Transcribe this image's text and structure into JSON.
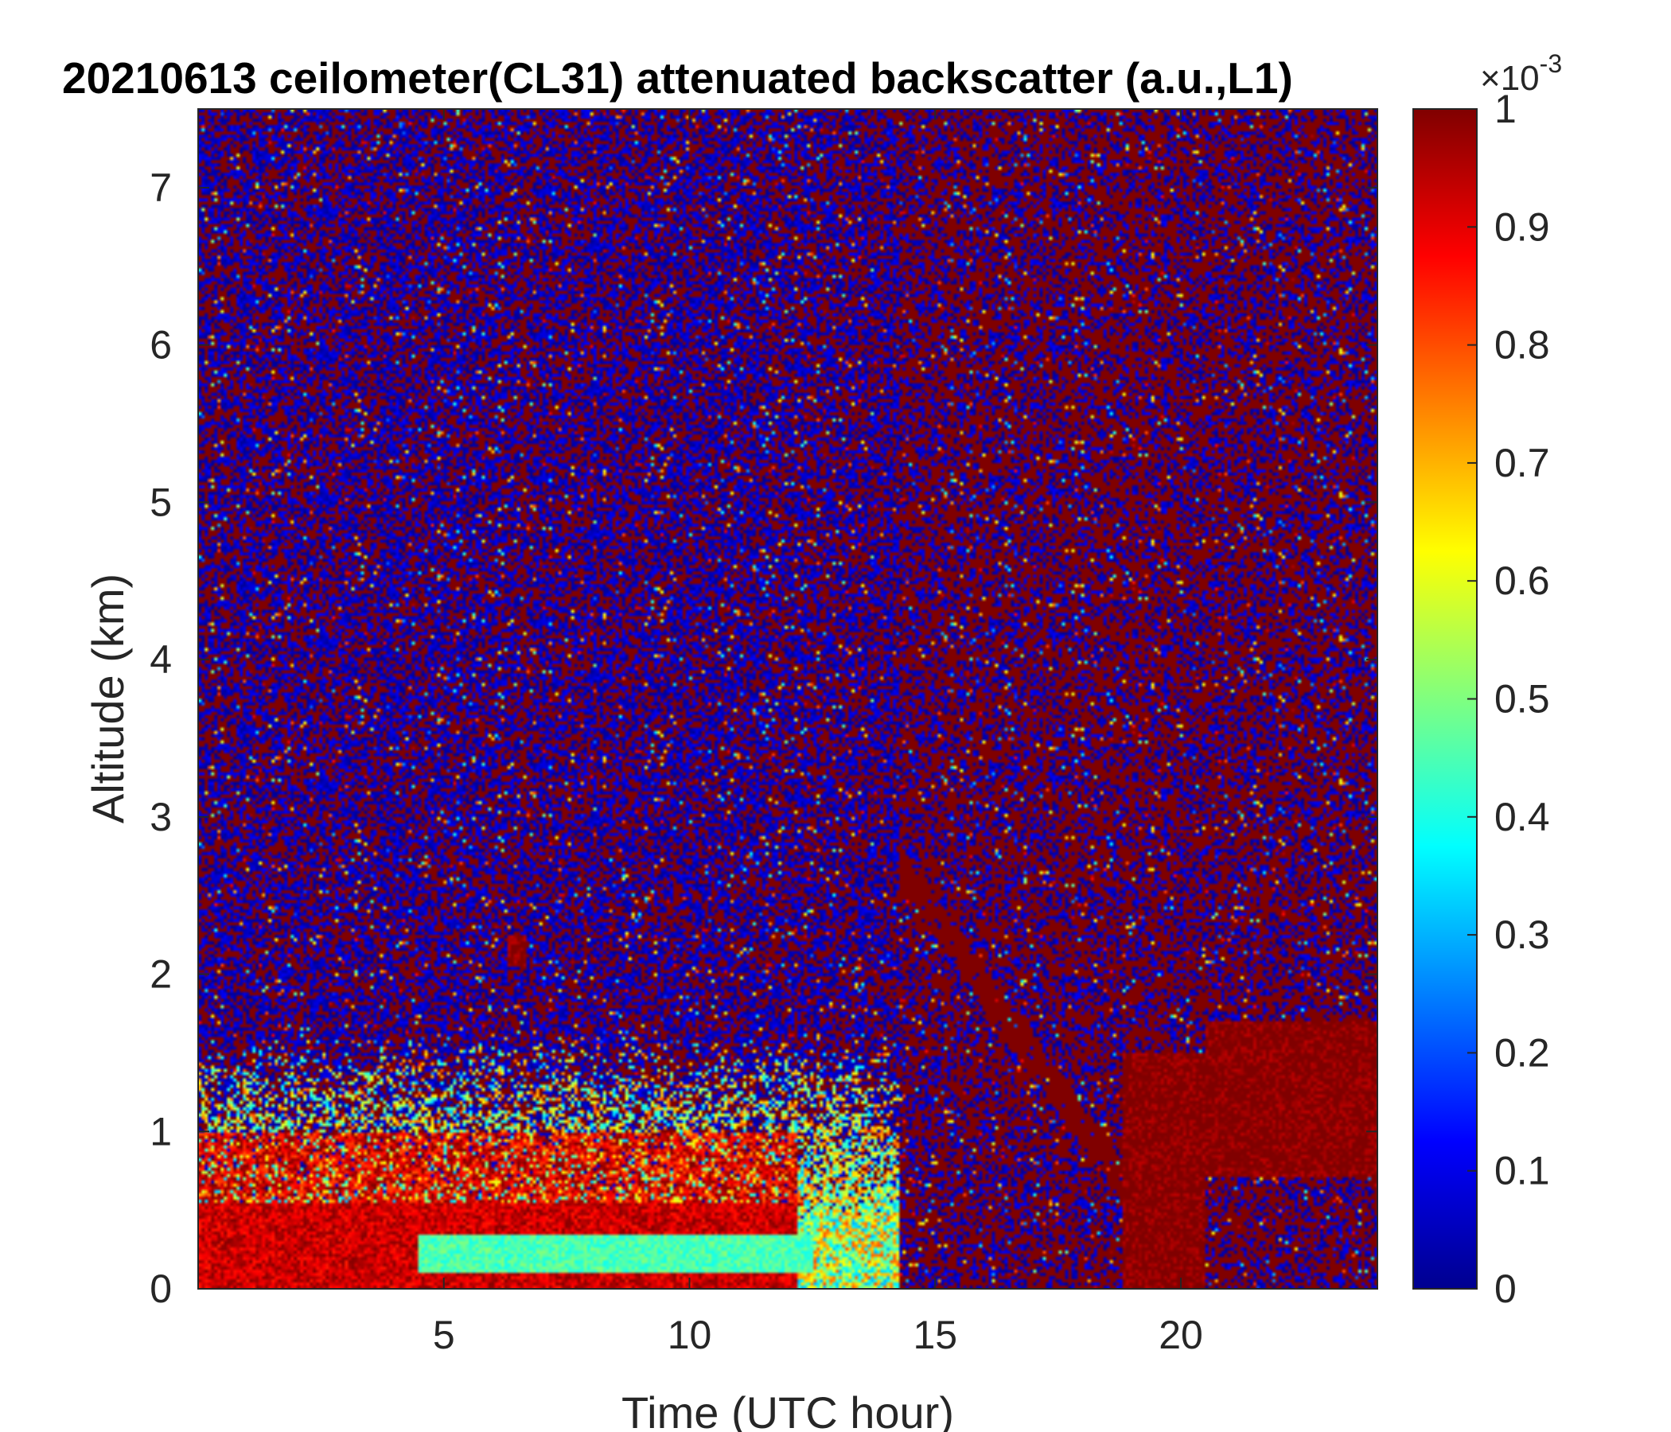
{
  "chart_data": {
    "type": "heatmap",
    "title": "20210613 ceilometer(CL31) attenuated backscatter (a.u.,L1)",
    "xlabel": "Time (UTC hour)",
    "ylabel": "Altitude (km)",
    "xlim": [
      0,
      24
    ],
    "ylim": [
      0,
      7.5
    ],
    "xticks": [
      5,
      10,
      15,
      20
    ],
    "yticks": [
      0,
      1,
      2,
      3,
      4,
      5,
      6,
      7
    ],
    "colorbar": {
      "colormap": "jet",
      "clim": [
        0,
        1
      ],
      "ticks": [
        0,
        0.1,
        0.2,
        0.3,
        0.4,
        0.5,
        0.6,
        0.7,
        0.8,
        0.9,
        1
      ],
      "exponent_base": "10",
      "exponent": "-3",
      "exponent_prefix": "×"
    },
    "features": [
      {
        "name": "boundary-layer backscatter (0–12 h)",
        "x": [
          0,
          12.2
        ],
        "y": [
          0,
          1.0
        ],
        "value": 0.95
      },
      {
        "name": "low-level aerosol band",
        "x": [
          4.5,
          12.5
        ],
        "y": [
          0.1,
          0.35
        ],
        "value": 0.45
      },
      {
        "name": "isolated echo",
        "x": [
          6.3,
          6.7
        ],
        "y": [
          2.05,
          2.25
        ],
        "value": 1.0
      },
      {
        "name": "precipitation streaks",
        "x": [
          14.3,
          19.5
        ],
        "y": [
          0,
          2.8
        ],
        "value": 1.0
      },
      {
        "name": "cloud / rain column",
        "x": [
          18.8,
          20.5
        ],
        "y": [
          0,
          1.5
        ],
        "value": 1.0
      },
      {
        "name": "elevated layer",
        "x": [
          20.5,
          24
        ],
        "y": [
          0.7,
          1.7
        ],
        "value": 1.0
      }
    ]
  }
}
